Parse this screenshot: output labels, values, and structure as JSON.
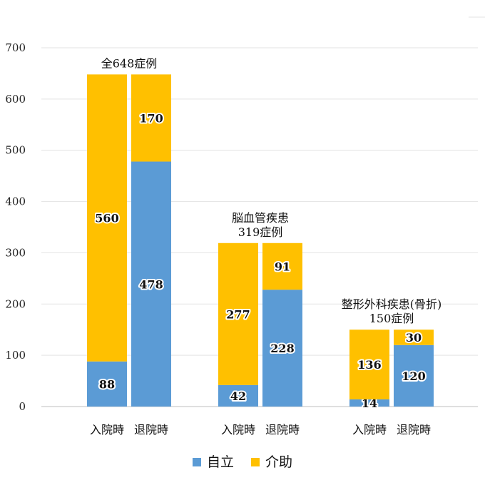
{
  "chart_data": {
    "type": "bar",
    "stacked": true,
    "ylim": [
      0,
      700
    ],
    "yticks": [
      0,
      100,
      200,
      300,
      400,
      500,
      600,
      700
    ],
    "grid": true,
    "legend": "bottom",
    "series": [
      {
        "name": "自立",
        "color": "#5B9BD5"
      },
      {
        "name": "介助",
        "color": "#FFC000"
      }
    ],
    "groups": [
      {
        "label": [
          "全648症例"
        ],
        "bars": [
          {
            "category": "入院時",
            "values": [
              88,
              560
            ]
          },
          {
            "category": "退院時",
            "values": [
              478,
              170
            ]
          }
        ]
      },
      {
        "label": [
          "脳血管疾患",
          "319症例"
        ],
        "bars": [
          {
            "category": "入院時",
            "values": [
              42,
              277
            ]
          },
          {
            "category": "退院時",
            "values": [
              228,
              91
            ]
          }
        ]
      },
      {
        "label": [
          "整形外科疾患(骨折)",
          "150症例"
        ],
        "bars": [
          {
            "category": "入院時",
            "values": [
              14,
              136
            ]
          },
          {
            "category": "退院時",
            "values": [
              120,
              30
            ]
          }
        ]
      }
    ]
  }
}
